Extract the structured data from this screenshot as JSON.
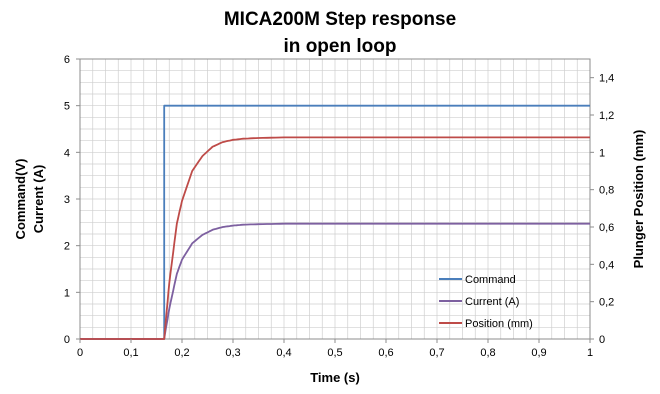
{
  "chart_data": {
    "type": "line",
    "title_lines": [
      "MICA200M Step response",
      "in open loop"
    ],
    "xlabel": "Time (s)",
    "ylabel_left_lines": [
      "Command(V)",
      "Current (A)"
    ],
    "ylabel_right": "Plunger Position (mm)",
    "xlim": [
      0,
      1
    ],
    "ylim_left": [
      0,
      6
    ],
    "ylim_right": [
      0,
      1.5
    ],
    "x_ticks": [
      "0",
      "0,1",
      "0,2",
      "0,3",
      "0,4",
      "0,5",
      "0,6",
      "0,7",
      "0,8",
      "0,9",
      "1"
    ],
    "y_left_ticks": [
      "0",
      "1",
      "2",
      "3",
      "4",
      "5",
      "6"
    ],
    "y_right_ticks": [
      "0",
      "0,2",
      "0,4",
      "0,6",
      "0,8",
      "1",
      "1,2",
      "1,4"
    ],
    "grid": true,
    "legend_position": "bottom-right",
    "series": [
      {
        "name": "Command",
        "axis": "left",
        "color": "#4a7ebb",
        "x": [
          0,
          0.165,
          0.165,
          1
        ],
        "y": [
          0,
          0,
          5,
          5
        ]
      },
      {
        "name": "Current (A)",
        "axis": "left",
        "color": "#7d60a0",
        "x": [
          0,
          0.165,
          0.175,
          0.19,
          0.2,
          0.22,
          0.24,
          0.26,
          0.28,
          0.3,
          0.32,
          0.35,
          0.4,
          0.5,
          1
        ],
        "y": [
          0,
          0,
          0.65,
          1.4,
          1.7,
          2.05,
          2.23,
          2.34,
          2.4,
          2.43,
          2.45,
          2.46,
          2.47,
          2.47,
          2.47
        ]
      },
      {
        "name": "Position (mm)",
        "axis": "right",
        "color": "#be4b48",
        "x": [
          0,
          0.165,
          0.175,
          0.19,
          0.2,
          0.22,
          0.24,
          0.26,
          0.28,
          0.3,
          0.32,
          0.35,
          0.4,
          0.5,
          1
        ],
        "y": [
          0,
          0,
          0.3,
          0.62,
          0.74,
          0.9,
          0.98,
          1.03,
          1.055,
          1.067,
          1.073,
          1.077,
          1.08,
          1.08,
          1.08
        ]
      }
    ]
  }
}
